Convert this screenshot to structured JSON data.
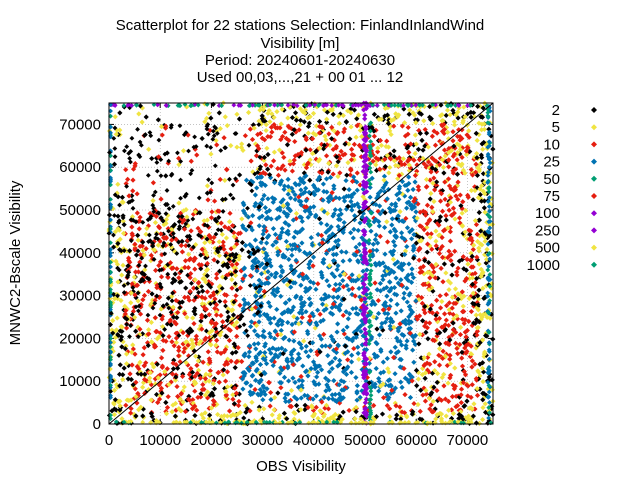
{
  "chart_data": {
    "type": "scatter",
    "title_lines": [
      "Scatterplot for   22 stations Selection: FinlandInlandWind",
      "Visibility [m]",
      "Period: 20240601-20240630",
      "Used 00,03,...,21 + 00 01 ... 12"
    ],
    "xlabel": "OBS Visibility",
    "ylabel": "MNWC2-Bscale Visibility",
    "xlim": [
      0,
      75000
    ],
    "ylim": [
      0,
      75000
    ],
    "x_ticks": [
      "0",
      "10000",
      "20000",
      "30000",
      "40000",
      "50000",
      "60000",
      "70000"
    ],
    "y_ticks": [
      "0",
      "10000",
      "20000",
      "30000",
      "40000",
      "50000",
      "60000",
      "70000"
    ],
    "grid": true,
    "diagonal_line": true,
    "legend_placement": "right",
    "series": [
      {
        "name": "2",
        "color": "#000000"
      },
      {
        "name": "5",
        "color": "#f0e442"
      },
      {
        "name": "10",
        "color": "#e51e10"
      },
      {
        "name": "25",
        "color": "#0072b2"
      },
      {
        "name": "50",
        "color": "#009e73"
      },
      {
        "name": "75",
        "color": "#e51e10"
      },
      {
        "name": "100",
        "color": "#9400d3"
      },
      {
        "name": "250",
        "color": "#9400d3"
      },
      {
        "name": "500",
        "color": "#f0e442"
      },
      {
        "name": "1000",
        "color": "#009e73"
      }
    ]
  }
}
